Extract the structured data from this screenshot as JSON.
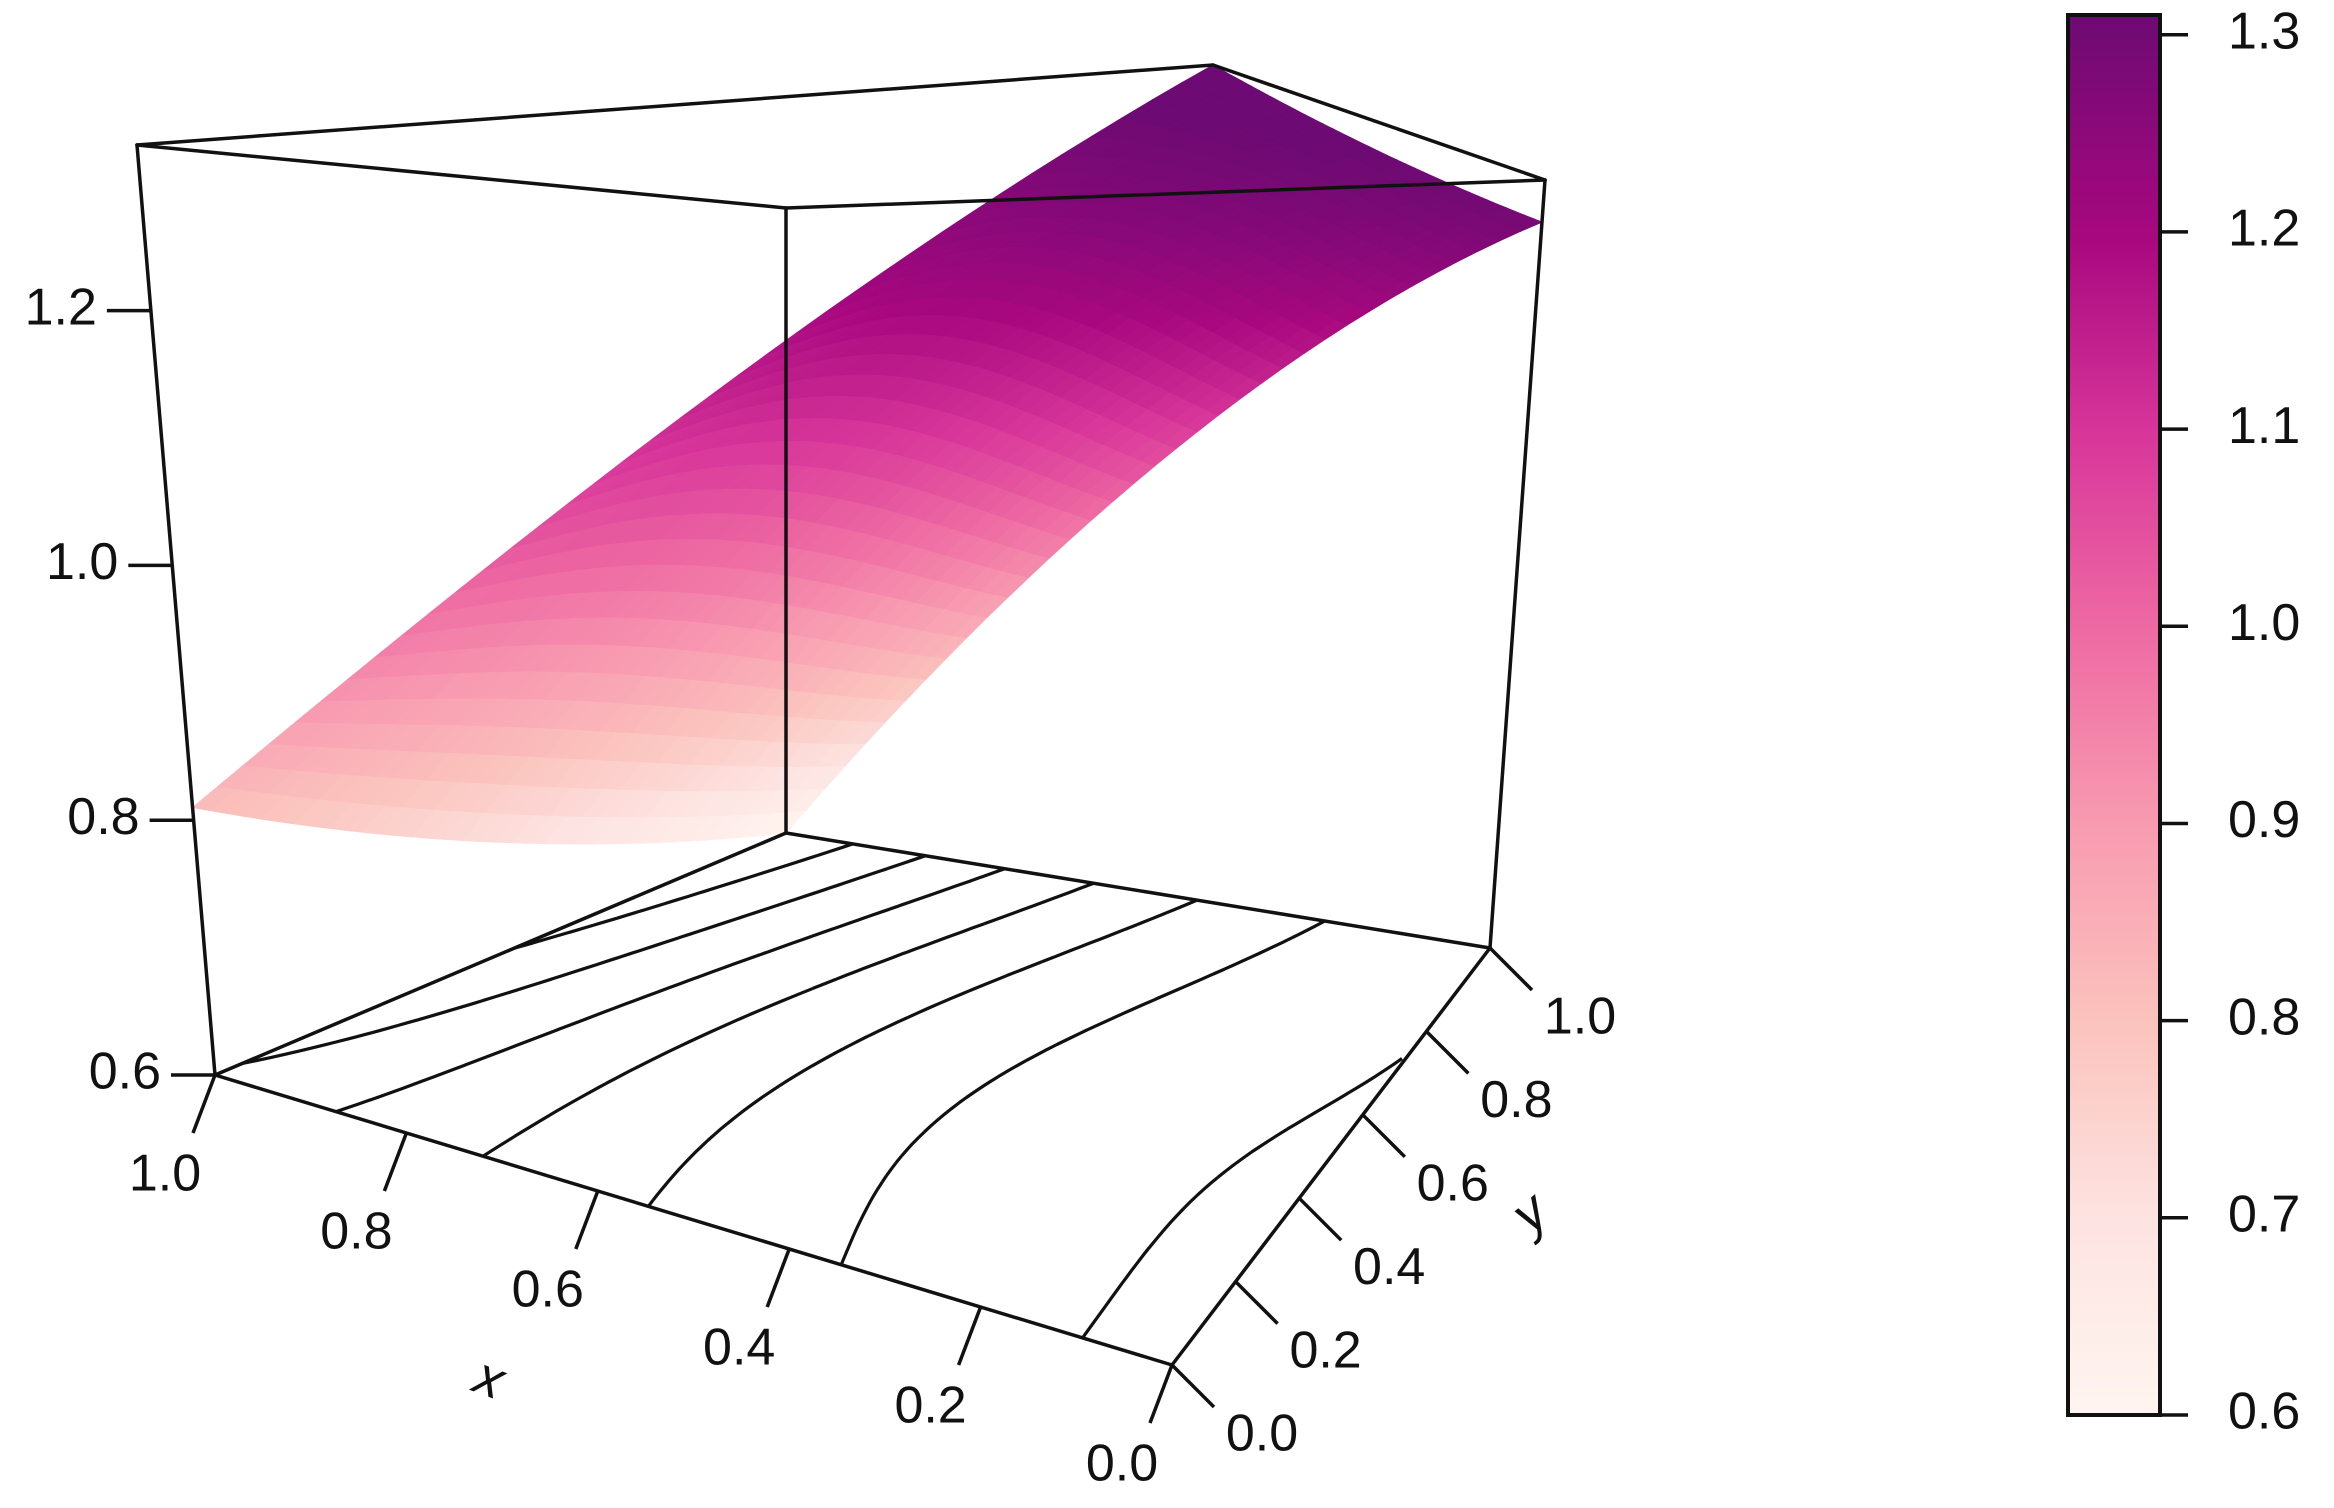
{
  "chart_data": {
    "type": "surface3d",
    "title": "",
    "xlabel": "x",
    "ylabel": "y",
    "x_ticks": [
      "0.0",
      "0.2",
      "0.4",
      "0.6",
      "0.8",
      "1.0"
    ],
    "y_ticks": [
      "0.0",
      "0.2",
      "0.4",
      "0.6",
      "0.8",
      "1.0"
    ],
    "z_ticks": [
      "0.6",
      "0.8",
      "1.0",
      "1.2"
    ],
    "xlim": [
      0,
      1
    ],
    "ylim": [
      0,
      1
    ],
    "zlim": [
      0.6,
      1.33
    ],
    "surface_corners": [
      {
        "x": 0.0,
        "y": 0.0,
        "z": 1.33
      },
      {
        "x": 1.0,
        "y": 0.0,
        "z": 0.81
      },
      {
        "x": 1.0,
        "y": 1.0,
        "z": 0.6
      },
      {
        "x": 0.0,
        "y": 1.0,
        "z": 1.29
      }
    ],
    "contour_levels": [
      0.7,
      0.8,
      0.9,
      1.0,
      1.1,
      1.2,
      1.3
    ],
    "colorbar": {
      "ticks": [
        "0.6",
        "0.7",
        "0.8",
        "0.9",
        "1.0",
        "1.1",
        "1.2",
        "1.3"
      ],
      "range": [
        0.6,
        1.31
      ],
      "color_low": "#fff5f0",
      "color_high": "#6d0a73"
    }
  }
}
